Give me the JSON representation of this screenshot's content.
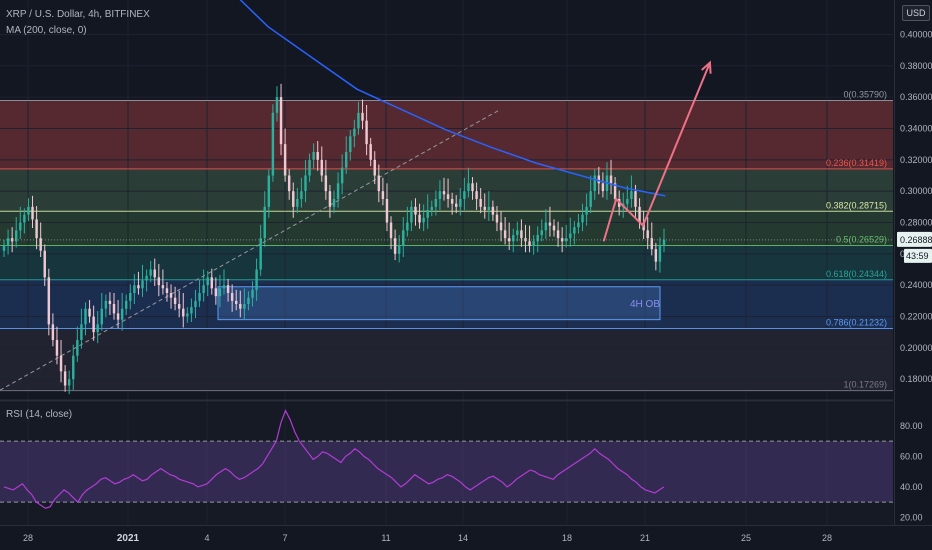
{
  "header": {
    "title": "XRP / U.S. Dollar, 4h, BITFINEX",
    "indicator": "MA (200, close, 0)",
    "currency_button": "USD"
  },
  "rsi_panel": {
    "label": "RSI (14, close)"
  },
  "colors": {
    "background": "#131722",
    "grid": "#1e2230",
    "candle_up": "#2ab09d",
    "candle_down": "#f0c8d2",
    "ma_line": "#2962ff",
    "rsi_line": "#b33bd6",
    "projection": "#ef7188"
  },
  "chart_data": [
    {
      "type": "candlestick",
      "title": "XRP / U.S. Dollar, 4h, BITFINEX",
      "ylim": [
        0.168,
        0.422
      ],
      "y_ticks": [
        "0.40000",
        "0.38000",
        "0.36000",
        "0.34000",
        "0.32000",
        "0.30000",
        "0.28000",
        "0.26000",
        "0.24000",
        "0.22000",
        "0.20000",
        "0.18000"
      ],
      "x_ticks": [
        "28",
        "2021",
        "4",
        "7",
        "11",
        "14",
        "18",
        "21",
        "25",
        "28"
      ],
      "last_price": "0.26888",
      "countdown": "43:59",
      "fib_levels": [
        {
          "ratio": "0",
          "value": 0.3579,
          "label": "0(0.35790)",
          "color": "#9598a1"
        },
        {
          "ratio": "0.236",
          "value": 0.31419,
          "label": "0.236(0.31419)",
          "color": "#ef5350"
        },
        {
          "ratio": "0.382",
          "value": 0.28715,
          "label": "0.382(0.28715)",
          "color": "#d6e9a5"
        },
        {
          "ratio": "0.5",
          "value": 0.26529,
          "label": "0.5(0.26529)",
          "color": "#66bb6a"
        },
        {
          "ratio": "0.618",
          "value": 0.24344,
          "label": "0.618(0.24344)",
          "color": "#26a69a"
        },
        {
          "ratio": "0.786",
          "value": 0.21232,
          "label": "0.786(0.21232)",
          "color": "#5b9cf6"
        },
        {
          "ratio": "1",
          "value": 0.17269,
          "label": "1(0.17269)",
          "color": "#787b86"
        }
      ],
      "order_block": {
        "label": "4H OB",
        "high": 0.239,
        "low": 0.218
      },
      "series_close": [
        0.265,
        0.27,
        0.268,
        0.275,
        0.28,
        0.285,
        0.29,
        0.282,
        0.27,
        0.262,
        0.245,
        0.215,
        0.205,
        0.195,
        0.185,
        0.176,
        0.18,
        0.195,
        0.205,
        0.215,
        0.225,
        0.22,
        0.21,
        0.215,
        0.225,
        0.23,
        0.228,
        0.222,
        0.218,
        0.225,
        0.23,
        0.235,
        0.24,
        0.238,
        0.243,
        0.246,
        0.25,
        0.245,
        0.24,
        0.238,
        0.235,
        0.232,
        0.228,
        0.225,
        0.22,
        0.222,
        0.226,
        0.23,
        0.235,
        0.24,
        0.245,
        0.238,
        0.233,
        0.238,
        0.24,
        0.235,
        0.23,
        0.228,
        0.225,
        0.228,
        0.232,
        0.237,
        0.25,
        0.27,
        0.29,
        0.31,
        0.35,
        0.36,
        0.33,
        0.31,
        0.3,
        0.29,
        0.295,
        0.3,
        0.31,
        0.32,
        0.325,
        0.32,
        0.31,
        0.3,
        0.29,
        0.295,
        0.305,
        0.315,
        0.325,
        0.335,
        0.34,
        0.35,
        0.345,
        0.33,
        0.32,
        0.31,
        0.3,
        0.295,
        0.28,
        0.27,
        0.26,
        0.265,
        0.275,
        0.28,
        0.29,
        0.285,
        0.28,
        0.283,
        0.288,
        0.29,
        0.295,
        0.3,
        0.298,
        0.295,
        0.292,
        0.29,
        0.295,
        0.3,
        0.305,
        0.3,
        0.295,
        0.29,
        0.288,
        0.29,
        0.285,
        0.28,
        0.275,
        0.27,
        0.268,
        0.272,
        0.275,
        0.27,
        0.268,
        0.265,
        0.268,
        0.272,
        0.275,
        0.28,
        0.278,
        0.275,
        0.27,
        0.268,
        0.27,
        0.273,
        0.277,
        0.28,
        0.285,
        0.29,
        0.3,
        0.31,
        0.305,
        0.3,
        0.31,
        0.305,
        0.295,
        0.29,
        0.292,
        0.295,
        0.3,
        0.29,
        0.28,
        0.275,
        0.27,
        0.263,
        0.255,
        0.265,
        0.269
      ],
      "ma_200": [
        [
          0.255,
          0.43
        ],
        [
          0.3,
          0.405
        ],
        [
          0.35,
          0.385
        ],
        [
          0.4,
          0.365
        ],
        [
          0.45,
          0.352
        ],
        [
          0.5,
          0.339
        ],
        [
          0.55,
          0.328
        ],
        [
          0.6,
          0.318
        ],
        [
          0.65,
          0.31
        ],
        [
          0.7,
          0.302
        ],
        [
          0.745,
          0.297
        ]
      ],
      "projection": [
        [
          0.676,
          0.268
        ],
        [
          0.69,
          0.295
        ],
        [
          0.72,
          0.278
        ],
        [
          0.795,
          0.382
        ]
      ]
    },
    {
      "type": "line",
      "title": "RSI (14, close)",
      "ylim": [
        15,
        95
      ],
      "y_ticks": [
        "80.00",
        "60.00",
        "40.00",
        "20.00"
      ],
      "bands": [
        70,
        30
      ],
      "values": [
        40,
        39,
        38,
        40,
        42,
        38,
        35,
        30,
        28,
        26,
        27,
        32,
        35,
        38,
        36,
        33,
        30,
        35,
        38,
        40,
        42,
        45,
        46,
        44,
        42,
        43,
        45,
        46,
        48,
        46,
        44,
        45,
        48,
        50,
        52,
        50,
        48,
        47,
        45,
        44,
        43,
        42,
        40,
        41,
        42,
        45,
        48,
        50,
        52,
        50,
        47,
        45,
        46,
        48,
        50,
        52,
        55,
        60,
        65,
        70,
        82,
        90,
        84,
        76,
        70,
        66,
        62,
        58,
        60,
        63,
        62,
        60,
        58,
        56,
        60,
        62,
        65,
        63,
        60,
        58,
        55,
        52,
        50,
        48,
        46,
        43,
        40,
        42,
        45,
        48,
        46,
        44,
        42,
        43,
        45,
        46,
        48,
        47,
        45,
        43,
        40,
        38,
        40,
        42,
        44,
        46,
        47,
        45,
        43,
        40,
        42,
        45,
        47,
        49,
        51,
        50,
        48,
        47,
        46,
        45,
        48,
        50,
        52,
        54,
        56,
        58,
        60,
        62,
        65,
        62,
        60,
        58,
        55,
        52,
        50,
        48,
        45,
        43,
        40,
        38,
        37,
        36,
        38,
        40
      ]
    }
  ]
}
